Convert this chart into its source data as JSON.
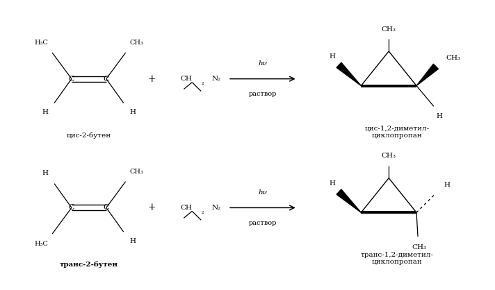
{
  "bg_color": "#ffffff",
  "text_color": "#000000",
  "line_color": "#000000",
  "fig_width": 7.12,
  "fig_height": 4.18,
  "dpi": 100,
  "reaction1_reactant": "цис-2-бутен",
  "reaction1_product": "цис-1,2-диметил-\nциклопропан",
  "reaction2_reactant": "транс-2-бутен",
  "reaction2_product": "транс-1,2-диметил-\nциклопропан",
  "hv": "hν",
  "rastvor": "раствор"
}
